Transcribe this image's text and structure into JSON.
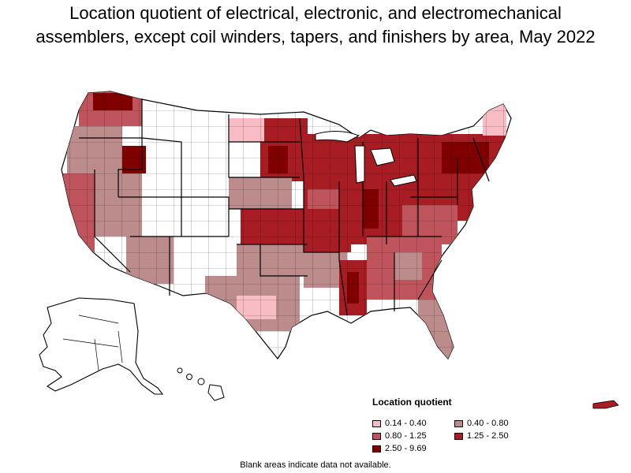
{
  "title_line1": "Location quotient of electrical, electronic, and electromechanical",
  "title_line2": "assemblers, except coil winders, tapers, and finishers by area, May 2022",
  "legend": {
    "title": "Location quotient",
    "items": [
      {
        "label": "0.14 - 0.40",
        "color": "#f8bcc4"
      },
      {
        "label": "0.40 - 0.80",
        "color": "#bc8c8c"
      },
      {
        "label": "0.80 - 1.25",
        "color": "#c0545c"
      },
      {
        "label": "1.25 - 2.50",
        "color": "#a81c24"
      },
      {
        "label": "2.50 - 9.69",
        "color": "#800000"
      }
    ]
  },
  "footnote": "Blank areas indicate data not available."
}
